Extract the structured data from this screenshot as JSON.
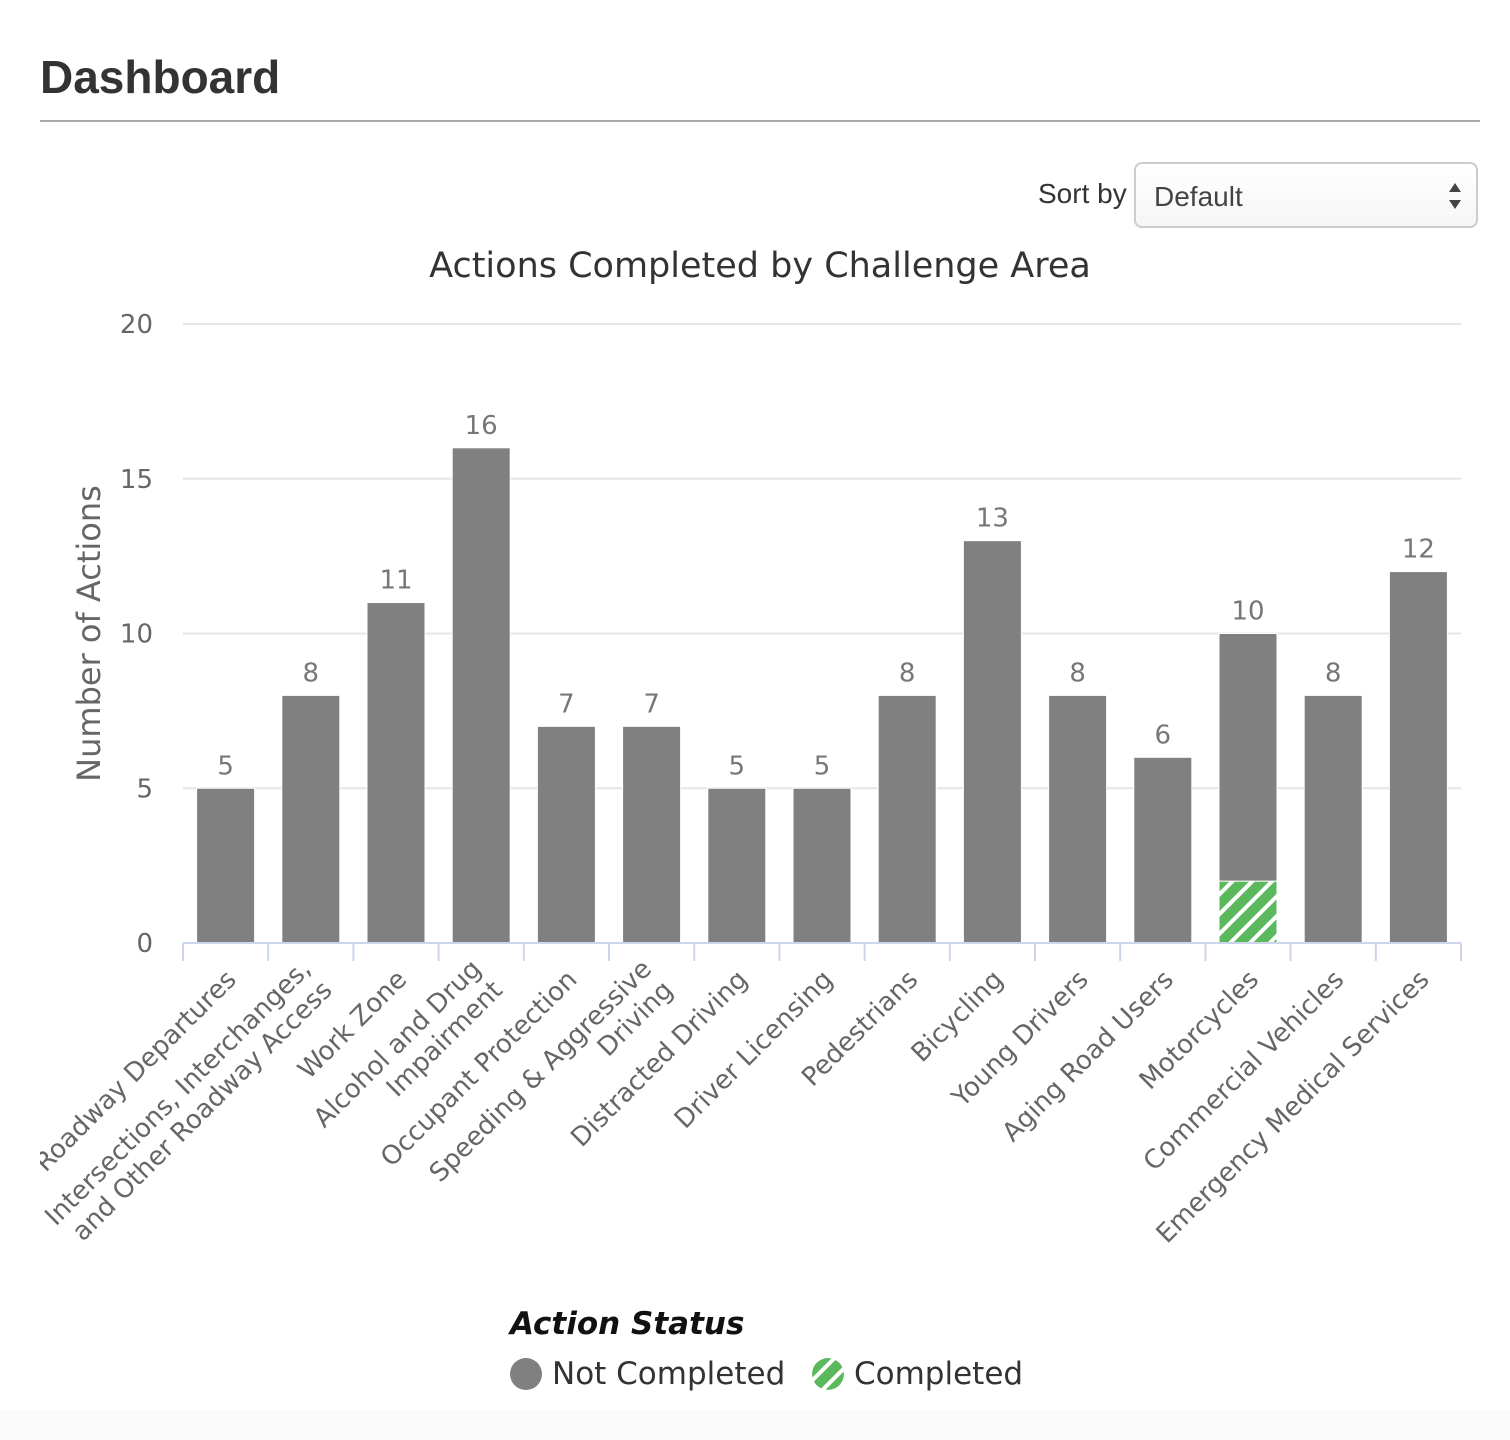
{
  "header": {
    "title": "Dashboard"
  },
  "controls": {
    "sort_label": "Sort by",
    "sort_value": "Default"
  },
  "legend": {
    "title": "Action Status",
    "items": [
      {
        "label": "Not Completed",
        "color": "#808080",
        "pattern": "solid"
      },
      {
        "label": "Completed",
        "color": "#5cb85c",
        "pattern": "diagonal-stripes"
      }
    ]
  },
  "colors": {
    "not_completed": "#808080",
    "completed": "#5cb85c",
    "axis_line": "#ccd6eb",
    "grid": "#e6e6e6"
  },
  "chart_data": {
    "type": "bar",
    "stacked": true,
    "title": "Actions Completed by Challenge Area",
    "xlabel": "",
    "ylabel": "Number of Actions",
    "ylim": [
      0,
      20
    ],
    "yticks": [
      0,
      5,
      10,
      15,
      20
    ],
    "grid": true,
    "legend_position": "bottom",
    "categories": [
      "Roadway Departures",
      "Intersections, Interchanges, and Other Roadway Access",
      "Work Zone",
      "Alcohol and Drug Impairment",
      "Occupant Protection",
      "Speeding & Aggressive Driving",
      "Distracted Driving",
      "Driver Licensing",
      "Pedestrians",
      "Bicycling",
      "Young Drivers",
      "Aging Road Users",
      "Motorcycles",
      "Commercial Vehicles",
      "Emergency Medical Services"
    ],
    "category_label_lines": [
      [
        "Roadway Departures"
      ],
      [
        "Intersections, Interchanges,",
        "and Other Roadway Access"
      ],
      [
        "Work Zone"
      ],
      [
        "Alcohol and Drug",
        "Impairment"
      ],
      [
        "Occupant Protection"
      ],
      [
        "Speeding & Aggressive",
        "Driving"
      ],
      [
        "Distracted Driving"
      ],
      [
        "Driver Licensing"
      ],
      [
        "Pedestrians"
      ],
      [
        "Bicycling"
      ],
      [
        "Young Drivers"
      ],
      [
        "Aging Road Users"
      ],
      [
        "Motorcycles"
      ],
      [
        "Commercial Vehicles"
      ],
      [
        "Emergency Medical Services"
      ]
    ],
    "series": [
      {
        "name": "Not Completed",
        "values": [
          5,
          8,
          11,
          16,
          7,
          7,
          5,
          5,
          8,
          13,
          8,
          6,
          8,
          8,
          12
        ]
      },
      {
        "name": "Completed",
        "values": [
          0,
          0,
          0,
          0,
          0,
          0,
          0,
          0,
          0,
          0,
          0,
          0,
          2,
          0,
          0
        ]
      }
    ],
    "totals": [
      5,
      8,
      11,
      16,
      7,
      7,
      5,
      5,
      8,
      13,
      8,
      6,
      10,
      8,
      12
    ]
  }
}
